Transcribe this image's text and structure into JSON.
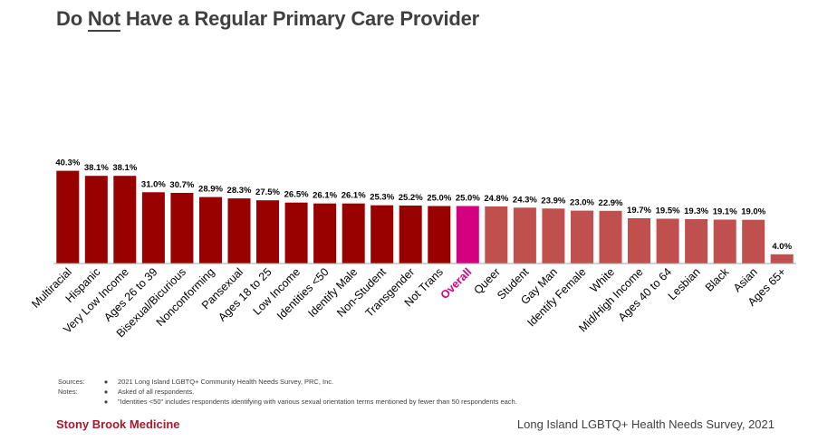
{
  "title": {
    "prefix": "Do ",
    "emphasis": "Not",
    "suffix": " Have a Regular Primary Care Provider"
  },
  "colors": {
    "dark": "#990000",
    "overall": "#d5007f",
    "light": "#c0504d",
    "axis": "#a6a6a6"
  },
  "chart_data": {
    "type": "bar",
    "categories": [
      "Multiracial",
      "Hispanic",
      "Very Low Income",
      "Ages 26 to 39",
      "Bisexual/Bicurious",
      "Nonconforming",
      "Pansexual",
      "Ages 18 to 25",
      "Low Income",
      "Identities <50",
      "Identify Male",
      "Non-Student",
      "Transgender",
      "Not Trans",
      "Overall",
      "Queer",
      "Student",
      "Gay Man",
      "Identify Female",
      "White",
      "Mid/High Income",
      "Ages 40 to 64",
      "Lesbian",
      "Black",
      "Asian",
      "Ages 65+"
    ],
    "values": [
      40.3,
      38.1,
      38.1,
      31.0,
      30.7,
      28.9,
      28.3,
      27.5,
      26.5,
      26.1,
      26.1,
      25.3,
      25.2,
      25.0,
      25.0,
      24.8,
      24.3,
      23.9,
      23.0,
      22.9,
      19.7,
      19.5,
      19.3,
      19.1,
      19.0,
      4.0
    ],
    "labels": [
      "40.3%",
      "38.1%",
      "38.1%",
      "31.0%",
      "30.7%",
      "28.9%",
      "28.3%",
      "27.5%",
      "26.5%",
      "26.1%",
      "26.1%",
      "25.3%",
      "25.2%",
      "25.0%",
      "25.0%",
      "24.8%",
      "24.3%",
      "23.9%",
      "23.0%",
      "22.9%",
      "19.7%",
      "19.5%",
      "19.3%",
      "19.1%",
      "19.0%",
      "4.0%"
    ],
    "overall_index": 14,
    "ylim": [
      0,
      100
    ],
    "grid": false,
    "legend": "none"
  },
  "notes": {
    "sources_label": "Sources:",
    "notes_label": "Notes:",
    "bullet": "●",
    "source": "2021 Long Island LGBTQ+ Community Health Needs Survey, PRC, Inc.",
    "note1": "Asked of all respondents.",
    "note2": "\"Identities <50\" includes respondents identifying with various sexual orientation terms mentioned by fewer than 50 respondents each."
  },
  "footer": {
    "left": "Stony Brook Medicine",
    "right": "Long Island LGBTQ+ Health Needs Survey, 2021"
  }
}
